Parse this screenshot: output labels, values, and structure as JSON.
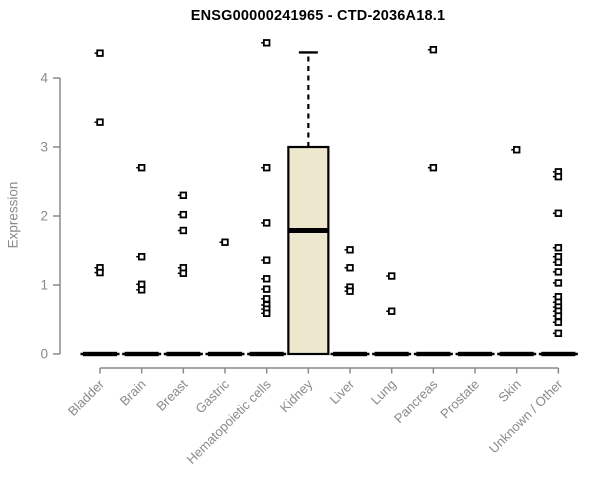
{
  "chart_data": {
    "type": "boxplot",
    "title": "ENSG00000241965 - CTD-2036A18.1",
    "ylabel": "Expression",
    "xlabel": "",
    "ylim": [
      0,
      4.6
    ],
    "yticks": [
      0,
      1,
      2,
      3,
      4
    ],
    "grid": false,
    "legend": "none",
    "colors": {
      "box_fill": "#ece7cd",
      "box_line": "#000000",
      "axis": "#8a8a8a",
      "tick_label": "#8a8a8a",
      "title": "#000000",
      "background": "#ffffff"
    },
    "categories": [
      "Bladder",
      "Brain",
      "Breast",
      "Gastric",
      "Hematopoietic cells",
      "Kidney",
      "Liver",
      "Lung",
      "Pancreas",
      "Prostate",
      "Skin",
      "Unknown / Other"
    ],
    "boxes": [
      {
        "category": "Bladder",
        "q1": 0,
        "median": 0,
        "q3": 0,
        "whisker_low": 0,
        "whisker_high": 0,
        "outliers": [
          4.36,
          3.36,
          1.25,
          1.18
        ]
      },
      {
        "category": "Brain",
        "q1": 0,
        "median": 0,
        "q3": 0,
        "whisker_low": 0,
        "whisker_high": 0,
        "outliers": [
          2.7,
          1.41,
          1.01,
          0.93
        ]
      },
      {
        "category": "Breast",
        "q1": 0,
        "median": 0,
        "q3": 0,
        "whisker_low": 0,
        "whisker_high": 0,
        "outliers": [
          2.3,
          2.02,
          1.79,
          1.25,
          1.17
        ]
      },
      {
        "category": "Gastric",
        "q1": 0,
        "median": 0,
        "q3": 0,
        "whisker_low": 0,
        "whisker_high": 0,
        "outliers": [
          1.62
        ]
      },
      {
        "category": "Hematopoietic cells",
        "q1": 0,
        "median": 0,
        "q3": 0,
        "whisker_low": 0,
        "whisker_high": 0,
        "outliers": [
          4.51,
          2.7,
          1.9,
          1.36,
          1.09,
          0.94,
          0.8,
          0.71,
          0.65,
          0.59
        ]
      },
      {
        "category": "Kidney",
        "q1": 0,
        "median": 1.79,
        "q3": 3.0,
        "whisker_low": 0,
        "whisker_high": 4.37,
        "outliers": []
      },
      {
        "category": "Liver",
        "q1": 0,
        "median": 0,
        "q3": 0,
        "whisker_low": 0,
        "whisker_high": 0,
        "outliers": [
          1.51,
          1.25,
          0.97,
          0.91
        ]
      },
      {
        "category": "Lung",
        "q1": 0,
        "median": 0,
        "q3": 0,
        "whisker_low": 0,
        "whisker_high": 0,
        "outliers": [
          1.13,
          0.62
        ]
      },
      {
        "category": "Pancreas",
        "q1": 0,
        "median": 0,
        "q3": 0,
        "whisker_low": 0,
        "whisker_high": 0,
        "outliers": [
          4.41,
          2.7
        ]
      },
      {
        "category": "Prostate",
        "q1": 0,
        "median": 0,
        "q3": 0,
        "whisker_low": 0,
        "whisker_high": 0,
        "outliers": []
      },
      {
        "category": "Skin",
        "q1": 0,
        "median": 0,
        "q3": 0,
        "whisker_low": 0,
        "whisker_high": 0,
        "outliers": [
          2.96
        ]
      },
      {
        "category": "Unknown / Other",
        "q1": 0,
        "median": 0,
        "q3": 0,
        "whisker_low": 0,
        "whisker_high": 0,
        "outliers": [
          2.64,
          2.57,
          2.04,
          1.54,
          1.41,
          1.33,
          1.19,
          1.03,
          0.83,
          0.75,
          0.68,
          0.62,
          0.55,
          0.46,
          0.3
        ]
      }
    ]
  }
}
